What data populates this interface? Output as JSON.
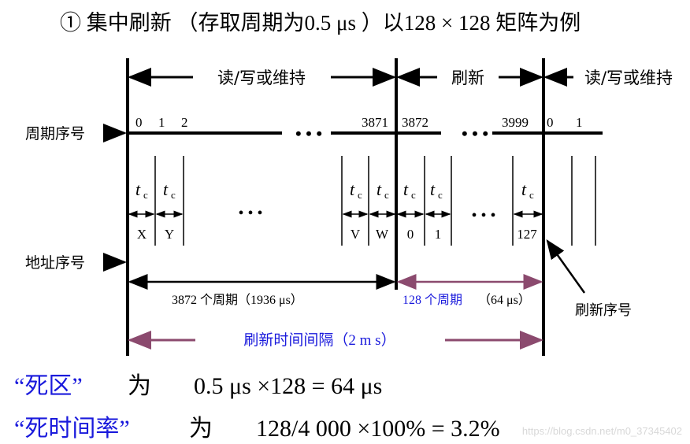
{
  "title": "① 集中刷新 （存取周期为0.5 μs ）以128 × 128 矩阵为例",
  "labels": {
    "cycle_number": "周期序号",
    "address_number": "地址序号",
    "refresh_number": "刷新序号",
    "read_write_1": "读/写或维持",
    "refresh": "刷新",
    "read_write_2": "读/写或维持"
  },
  "cycle_ticks": [
    "0",
    "1",
    "2",
    "3871",
    "3872",
    "3999",
    "0",
    "1"
  ],
  "tc": "t",
  "tc_sub": "c",
  "address_cells": [
    "X",
    "Y",
    "V",
    "W",
    "0",
    "1",
    "127"
  ],
  "ellipsis": "• • •",
  "spans": {
    "rw_cycles": "3872 个周期（1936 μs）",
    "refresh_cycles": "128 个周期",
    "refresh_time": "（64 μs）",
    "interval": "刷新时间间隔（2 m s）"
  },
  "formulas": {
    "dead_zone_label": "“死区”",
    "dead_zone_is": "为",
    "dead_zone_expr": "0.5 μs ×128 = 64 μs",
    "dead_rate_label": "“死时间率”",
    "dead_rate_is": "为",
    "dead_rate_expr": "128/4 000 ×100% = 3.2%"
  },
  "watermark": "https://blog.csdn.net/m0_37345402",
  "colors": {
    "purple": "#8b4a6e",
    "blue": "#1a1adc",
    "black": "#000000"
  }
}
